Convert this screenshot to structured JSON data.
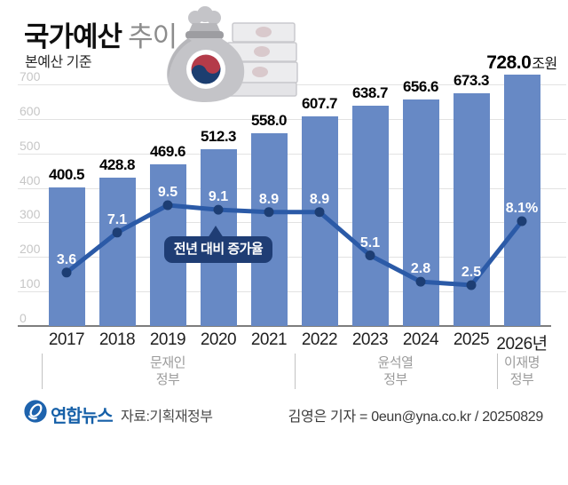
{
  "header": {
    "title_bold": "국가예산",
    "title_light": "추이",
    "subtitle": "본예산 기준"
  },
  "chart_data": {
    "type": "bar",
    "title": "국가예산 추이",
    "xlabel": "",
    "ylabel": "조원",
    "ylim": [
      0,
      700
    ],
    "yticks": [
      0,
      100,
      200,
      300,
      400,
      500,
      600,
      700
    ],
    "grid": true,
    "legend_position": "none",
    "categories": [
      "2017",
      "2018",
      "2019",
      "2020",
      "2021",
      "2022",
      "2023",
      "2024",
      "2025",
      "2026년"
    ],
    "series": [
      {
        "name": "본예산",
        "type": "bar",
        "unit": "조원",
        "values": [
          400.5,
          428.8,
          469.6,
          512.3,
          558.0,
          607.7,
          638.7,
          656.6,
          673.3,
          728.0
        ],
        "labels": [
          "400.5",
          "428.8",
          "469.6",
          "512.3",
          "558.0",
          "607.7",
          "638.7",
          "656.6",
          "673.3",
          "728.0"
        ],
        "last_label_suffix": "조원"
      },
      {
        "name": "전년 대비 증가율",
        "type": "line",
        "unit": "%",
        "values": [
          3.6,
          7.1,
          9.5,
          9.1,
          8.9,
          8.9,
          5.1,
          2.8,
          2.5,
          8.1
        ],
        "labels": [
          "3.6",
          "7.1",
          "9.5",
          "9.1",
          "8.9",
          "8.9",
          "5.1",
          "2.8",
          "2.5",
          "8.1%"
        ]
      }
    ],
    "annotation": {
      "text": "전년 대비 증가율",
      "points_to_category": "2020"
    }
  },
  "axis_groups": [
    {
      "lines": [
        "문재인",
        "정부"
      ],
      "start": 0,
      "end": 4
    },
    {
      "lines": [
        "윤석열",
        "정부"
      ],
      "start": 5,
      "end": 8
    },
    {
      "lines": [
        "이재명",
        "정부"
      ],
      "start": 9,
      "end": 9
    }
  ],
  "footer": {
    "agency": "연합뉴스",
    "source": "자료:기획재정부",
    "credit": "김영은 기자 = 0eun@yna.co.kr / 20250829"
  },
  "icons": {
    "money_bag": "money-bag-icon",
    "agency_logo": "yonhap-logo-icon"
  },
  "colors": {
    "bar": "#6789c5",
    "line": "#2b5aa7",
    "dot": "#1d3e74",
    "callout_bg": "#1f3d74",
    "brand_blue": "#1660a8",
    "grid": "#e2e2e2",
    "emblem_red": "#b43b49",
    "emblem_navy": "#1c3e70"
  }
}
